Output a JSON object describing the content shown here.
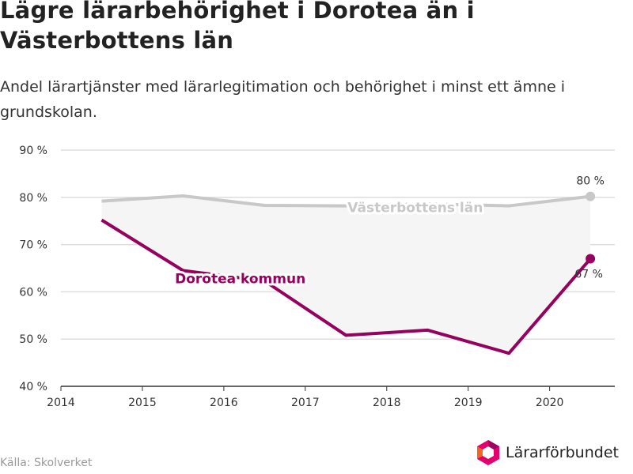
{
  "title": "Lägre lärarbehörighet i Dorotea än i Västerbottens län",
  "subtitle": "Andel lärartjänster med lärarlegitimation och behörighet i minst ett ämne i grundskolan.",
  "source": "Källa: Skolverket",
  "brand": {
    "name": "Lärarförbundet"
  },
  "colors": {
    "vasterbotten": "#c8c8c8",
    "dorotea": "#96005e",
    "area": "#f5f5f5",
    "grid": "#dddddd",
    "axis": "#333333"
  },
  "chart_data": {
    "type": "line",
    "x": [
      2014.5,
      2015.5,
      2016.5,
      2017.5,
      2018.5,
      2019.5,
      2020.5
    ],
    "xlim": [
      2014,
      2020.8
    ],
    "ylim": [
      40,
      90
    ],
    "x_ticks": [
      "2014",
      "2015",
      "2016",
      "2017",
      "2018",
      "2019",
      "2020"
    ],
    "y_ticks": [
      "40 %",
      "50 %",
      "60 %",
      "70 %",
      "80 %",
      "90 %"
    ],
    "series": [
      {
        "name": "Västerbottens län",
        "values": [
          79.2,
          80.3,
          78.3,
          78.2,
          78.6,
          78.2,
          80.2
        ],
        "end_label": "80 %"
      },
      {
        "name": "Dorotea kommun",
        "values": [
          75.2,
          64.5,
          62.3,
          50.8,
          51.9,
          47.0,
          67.0
        ],
        "end_label": "67 %"
      }
    ],
    "grid": true,
    "area_between_series": true
  }
}
